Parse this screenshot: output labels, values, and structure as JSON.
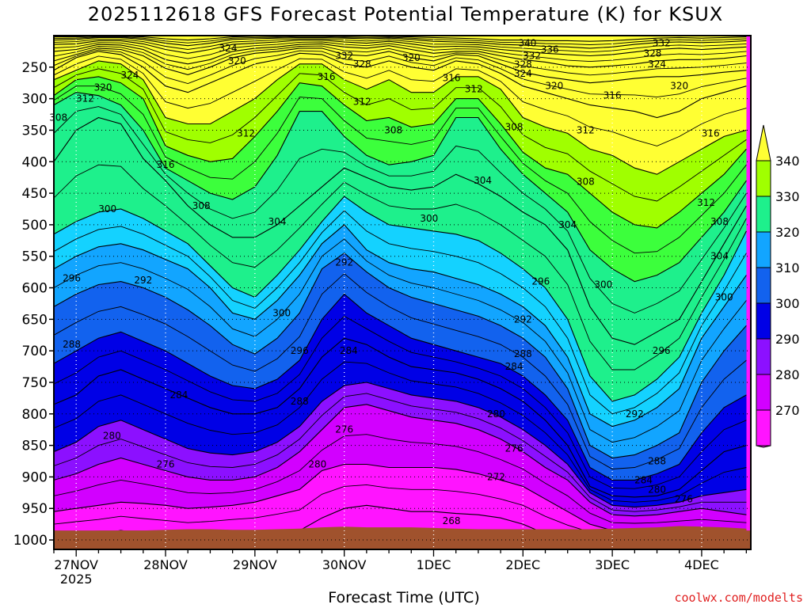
{
  "chart_data": {
    "type": "heatmap",
    "title": "2025112618 GFS Forecast Potential Temperature (K) for KSUX",
    "xlabel": "Forecast Time (UTC)",
    "ylabel": "",
    "credit": "coolwx.com/modelts",
    "x_start_label_year": "2025",
    "x_ticks": [
      {
        "label": "27NOV",
        "day": 0.25
      },
      {
        "label": "28NOV",
        "day": 1.25
      },
      {
        "label": "29NOV",
        "day": 2.25
      },
      {
        "label": "30NOV",
        "day": 3.25
      },
      {
        "label": "1DEC",
        "day": 4.25
      },
      {
        "label": "2DEC",
        "day": 5.25
      },
      {
        "label": "3DEC",
        "day": 6.25
      },
      {
        "label": "4DEC",
        "day": 7.25
      }
    ],
    "xlim": [
      0,
      7.8
    ],
    "y_ticks": [
      250,
      300,
      350,
      400,
      450,
      500,
      550,
      600,
      650,
      700,
      750,
      800,
      850,
      900,
      950,
      1000
    ],
    "ylim": [
      200,
      1015
    ],
    "grid": true,
    "colorbar": {
      "labels": [
        "340",
        "330",
        "320",
        "310",
        "300",
        "290",
        "280",
        "270"
      ],
      "levels": [
        270,
        280,
        290,
        300,
        310,
        320,
        330,
        340
      ],
      "colors": [
        "#ff14ff",
        "#d200ff",
        "#8c10ff",
        "#0000e6",
        "#1262ee",
        "#12a5ff",
        "#14d2ff",
        "#1ef08c",
        "#3cff3c",
        "#a0ff00",
        "#ffff33"
      ]
    },
    "ground_color": "#a0522d",
    "x_days": [
      0.0,
      0.25,
      0.5,
      0.75,
      1.0,
      1.25,
      1.5,
      1.75,
      2.0,
      2.25,
      2.5,
      2.75,
      3.0,
      3.25,
      3.5,
      3.75,
      4.0,
      4.25,
      4.5,
      4.75,
      5.0,
      5.25,
      5.5,
      5.75,
      6.0,
      6.25,
      6.5,
      6.75,
      7.0,
      7.25,
      7.5,
      7.75
    ],
    "isentropes": [
      {
        "theta": 268,
        "p": [
          995,
          992,
          990,
          985,
          990,
          993,
          995,
          993,
          990,
          990,
          988,
          985,
          965,
          950,
          945,
          950,
          955,
          955,
          958,
          960,
          965,
          975,
          990,
          998,
          1000,
          1000,
          1000,
          1000,
          1000,
          1000,
          1000,
          1000
        ]
      },
      {
        "theta": 272,
        "p": [
          955,
          950,
          945,
          940,
          942,
          945,
          950,
          948,
          945,
          940,
          930,
          920,
          890,
          880,
          880,
          885,
          885,
          885,
          888,
          895,
          905,
          915,
          935,
          955,
          975,
          985,
          985,
          985,
          985,
          985,
          985,
          985
        ]
      },
      {
        "theta": 276,
        "p": [
          905,
          895,
          880,
          870,
          880,
          890,
          900,
          905,
          905,
          900,
          885,
          860,
          825,
          790,
          785,
          795,
          805,
          810,
          815,
          825,
          840,
          860,
          885,
          905,
          940,
          960,
          962,
          960,
          955,
          950,
          955,
          960
        ]
      },
      {
        "theta": 280,
        "p": [
          860,
          845,
          820,
          810,
          825,
          840,
          855,
          862,
          865,
          860,
          845,
          820,
          780,
          755,
          750,
          760,
          770,
          775,
          780,
          790,
          805,
          825,
          850,
          880,
          925,
          945,
          948,
          945,
          940,
          930,
          925,
          920
        ]
      },
      {
        "theta": 284,
        "p": [
          785,
          770,
          740,
          730,
          745,
          760,
          775,
          790,
          800,
          800,
          790,
          760,
          710,
          680,
          690,
          710,
          725,
          730,
          735,
          745,
          760,
          780,
          810,
          850,
          915,
          930,
          932,
          930,
          920,
          890,
          860,
          850
        ]
      },
      {
        "theta": 288,
        "p": [
          720,
          700,
          680,
          670,
          685,
          700,
          720,
          740,
          755,
          760,
          745,
          715,
          650,
          610,
          640,
          660,
          680,
          690,
          700,
          710,
          720,
          740,
          770,
          810,
          885,
          905,
          905,
          895,
          880,
          830,
          790,
          770
        ]
      },
      {
        "theta": 292,
        "p": [
          630,
          610,
          595,
          590,
          600,
          615,
          635,
          660,
          690,
          705,
          680,
          640,
          570,
          545,
          575,
          600,
          615,
          625,
          635,
          645,
          660,
          680,
          710,
          760,
          850,
          870,
          865,
          850,
          830,
          750,
          700,
          660
        ]
      },
      {
        "theta": 296,
        "p": [
          570,
          550,
          535,
          530,
          540,
          555,
          570,
          600,
          640,
          650,
          620,
          580,
          530,
          500,
          540,
          560,
          570,
          575,
          585,
          595,
          610,
          630,
          660,
          710,
          800,
          820,
          810,
          790,
          760,
          680,
          630,
          580
        ]
      },
      {
        "theta": 300,
        "p": [
          515,
          495,
          480,
          475,
          490,
          510,
          530,
          565,
          600,
          615,
          580,
          540,
          495,
          455,
          480,
          500,
          505,
          510,
          515,
          525,
          545,
          570,
          600,
          650,
          740,
          780,
          770,
          745,
          710,
          640,
          580,
          510
        ]
      },
      {
        "theta": 304,
        "p": [
          400,
          350,
          330,
          340,
          395,
          430,
          470,
          500,
          520,
          520,
          500,
          470,
          440,
          410,
          425,
          440,
          445,
          440,
          420,
          435,
          455,
          480,
          500,
          540,
          630,
          680,
          690,
          670,
          650,
          590,
          530,
          470
        ]
      },
      {
        "theta": 308,
        "p": [
          310,
          290,
          295,
          310,
          350,
          410,
          430,
          450,
          460,
          440,
          390,
          320,
          320,
          360,
          390,
          405,
          400,
          390,
          330,
          330,
          380,
          420,
          450,
          480,
          540,
          570,
          590,
          580,
          560,
          520,
          480,
          430
        ]
      },
      {
        "theta": 312,
        "p": [
          295,
          270,
          265,
          275,
          300,
          375,
          390,
          400,
          395,
          360,
          320,
          275,
          280,
          310,
          335,
          330,
          345,
          340,
          300,
          300,
          340,
          385,
          410,
          420,
          450,
          480,
          500,
          505,
          480,
          450,
          420,
          380
        ]
      },
      {
        "theta": 316,
        "p": [
          270,
          255,
          240,
          245,
          270,
          330,
          340,
          340,
          320,
          300,
          270,
          245,
          245,
          270,
          285,
          270,
          290,
          290,
          265,
          265,
          285,
          330,
          345,
          355,
          380,
          390,
          410,
          420,
          400,
          380,
          360,
          350
        ]
      },
      {
        "theta": 320,
        "p": [
          255,
          235,
          225,
          230,
          250,
          280,
          290,
          275,
          260,
          245,
          238,
          228,
          230,
          245,
          250,
          240,
          250,
          255,
          240,
          245,
          260,
          280,
          290,
          300,
          310,
          315,
          320,
          330,
          320,
          300,
          290,
          280
        ]
      },
      {
        "theta": 324,
        "p": [
          240,
          230,
          220,
          222,
          232,
          252,
          262,
          250,
          235,
          228,
          225,
          220,
          220,
          230,
          232,
          225,
          235,
          240,
          230,
          232,
          245,
          258,
          265,
          270,
          275,
          272,
          268,
          265,
          265,
          262,
          258,
          255
        ]
      },
      {
        "theta": 328,
        "p": [
          225,
          222,
          214,
          215,
          222,
          238,
          245,
          238,
          225,
          220,
          218,
          214,
          213,
          218,
          220,
          216,
          222,
          228,
          225,
          225,
          232,
          238,
          242,
          248,
          250,
          248,
          245,
          240,
          238,
          238,
          236,
          232
        ]
      },
      {
        "theta": 332,
        "p": [
          214,
          213,
          208,
          208,
          213,
          222,
          228,
          222,
          214,
          212,
          210,
          207,
          207,
          210,
          212,
          209,
          213,
          218,
          217,
          218,
          222,
          225,
          228,
          230,
          232,
          230,
          226,
          222,
          220,
          222,
          220,
          218
        ]
      },
      {
        "theta": 336,
        "p": [
          207,
          206,
          203,
          203,
          206,
          212,
          216,
          212,
          206,
          205,
          204,
          203,
          203,
          204,
          205,
          204,
          206,
          209,
          210,
          211,
          214,
          215,
          217,
          218,
          220,
          218,
          214,
          211,
          210,
          211,
          210,
          208
        ]
      },
      {
        "theta": 340,
        "p": [
          202,
          202,
          201,
          201,
          202,
          205,
          207,
          205,
          202,
          201,
          201,
          200,
          200,
          201,
          201,
          201,
          202,
          203,
          204,
          205,
          207,
          207,
          208,
          208,
          209,
          208,
          206,
          204,
          203,
          204,
          203,
          202
        ]
      }
    ],
    "ground_p": [
      985,
      987,
      985,
      985,
      985,
      984,
      983,
      983,
      984,
      984,
      983,
      982,
      980,
      979,
      980,
      980,
      980,
      981,
      982,
      983,
      983,
      983,
      983,
      983,
      983,
      982,
      981,
      980,
      978,
      979,
      980,
      982
    ],
    "contour_labels": [
      {
        "text": "308",
        "day": 0.05,
        "p": 330
      },
      {
        "text": "312",
        "day": 0.35,
        "p": 300
      },
      {
        "text": "320",
        "day": 0.55,
        "p": 282
      },
      {
        "text": "324",
        "day": 0.85,
        "p": 263
      },
      {
        "text": "324",
        "day": 1.95,
        "p": 220
      },
      {
        "text": "320",
        "day": 2.05,
        "p": 240
      },
      {
        "text": "316",
        "day": 1.25,
        "p": 405
      },
      {
        "text": "312",
        "day": 2.15,
        "p": 355
      },
      {
        "text": "308",
        "day": 1.65,
        "p": 470
      },
      {
        "text": "304",
        "day": 2.5,
        "p": 495
      },
      {
        "text": "300",
        "day": 0.6,
        "p": 475
      },
      {
        "text": "296",
        "day": 0.2,
        "p": 585
      },
      {
        "text": "292",
        "day": 1.0,
        "p": 588
      },
      {
        "text": "288",
        "day": 0.2,
        "p": 690
      },
      {
        "text": "284",
        "day": 1.4,
        "p": 770
      },
      {
        "text": "280",
        "day": 0.65,
        "p": 835
      },
      {
        "text": "276",
        "day": 1.25,
        "p": 880
      },
      {
        "text": "300",
        "day": 2.55,
        "p": 640
      },
      {
        "text": "296",
        "day": 2.75,
        "p": 700
      },
      {
        "text": "288",
        "day": 2.75,
        "p": 780
      },
      {
        "text": "280",
        "day": 2.95,
        "p": 880
      },
      {
        "text": "284",
        "day": 3.3,
        "p": 700
      },
      {
        "text": "276",
        "day": 3.25,
        "p": 825
      },
      {
        "text": "292",
        "day": 3.25,
        "p": 560
      },
      {
        "text": "332",
        "day": 3.25,
        "p": 232
      },
      {
        "text": "328",
        "day": 3.45,
        "p": 245
      },
      {
        "text": "320",
        "day": 4.0,
        "p": 235
      },
      {
        "text": "316",
        "day": 3.05,
        "p": 265
      },
      {
        "text": "312",
        "day": 3.45,
        "p": 305
      },
      {
        "text": "308",
        "day": 3.8,
        "p": 350
      },
      {
        "text": "316",
        "day": 4.45,
        "p": 267
      },
      {
        "text": "312",
        "day": 4.7,
        "p": 285
      },
      {
        "text": "304",
        "day": 4.8,
        "p": 430
      },
      {
        "text": "300",
        "day": 4.2,
        "p": 490
      },
      {
        "text": "268",
        "day": 4.45,
        "p": 970
      },
      {
        "text": "272",
        "day": 4.95,
        "p": 900
      },
      {
        "text": "276",
        "day": 5.15,
        "p": 855
      },
      {
        "text": "280",
        "day": 4.95,
        "p": 800
      },
      {
        "text": "284",
        "day": 5.15,
        "p": 725
      },
      {
        "text": "288",
        "day": 5.25,
        "p": 705
      },
      {
        "text": "292",
        "day": 5.25,
        "p": 650
      },
      {
        "text": "296",
        "day": 5.45,
        "p": 590
      },
      {
        "text": "308",
        "day": 5.15,
        "p": 345
      },
      {
        "text": "340",
        "day": 5.3,
        "p": 212
      },
      {
        "text": "336",
        "day": 5.55,
        "p": 222
      },
      {
        "text": "332",
        "day": 5.35,
        "p": 232
      },
      {
        "text": "328",
        "day": 5.25,
        "p": 246
      },
      {
        "text": "324",
        "day": 5.25,
        "p": 260
      },
      {
        "text": "320",
        "day": 5.6,
        "p": 280
      },
      {
        "text": "316",
        "day": 6.25,
        "p": 295
      },
      {
        "text": "312",
        "day": 5.95,
        "p": 350
      },
      {
        "text": "308",
        "day": 5.95,
        "p": 432
      },
      {
        "text": "304",
        "day": 5.75,
        "p": 500
      },
      {
        "text": "300",
        "day": 6.15,
        "p": 595
      },
      {
        "text": "296",
        "day": 6.8,
        "p": 700
      },
      {
        "text": "292",
        "day": 6.5,
        "p": 800
      },
      {
        "text": "288",
        "day": 6.75,
        "p": 875
      },
      {
        "text": "284",
        "day": 6.6,
        "p": 905
      },
      {
        "text": "280",
        "day": 6.75,
        "p": 920
      },
      {
        "text": "276",
        "day": 7.05,
        "p": 935
      },
      {
        "text": "332",
        "day": 6.8,
        "p": 212
      },
      {
        "text": "328",
        "day": 6.7,
        "p": 228
      },
      {
        "text": "324",
        "day": 6.75,
        "p": 245
      },
      {
        "text": "320",
        "day": 7.0,
        "p": 280
      },
      {
        "text": "316",
        "day": 7.35,
        "p": 355
      },
      {
        "text": "312",
        "day": 7.3,
        "p": 465
      },
      {
        "text": "308",
        "day": 7.45,
        "p": 495
      },
      {
        "text": "304",
        "day": 7.45,
        "p": 550
      },
      {
        "text": "300",
        "day": 7.5,
        "p": 615
      }
    ]
  }
}
